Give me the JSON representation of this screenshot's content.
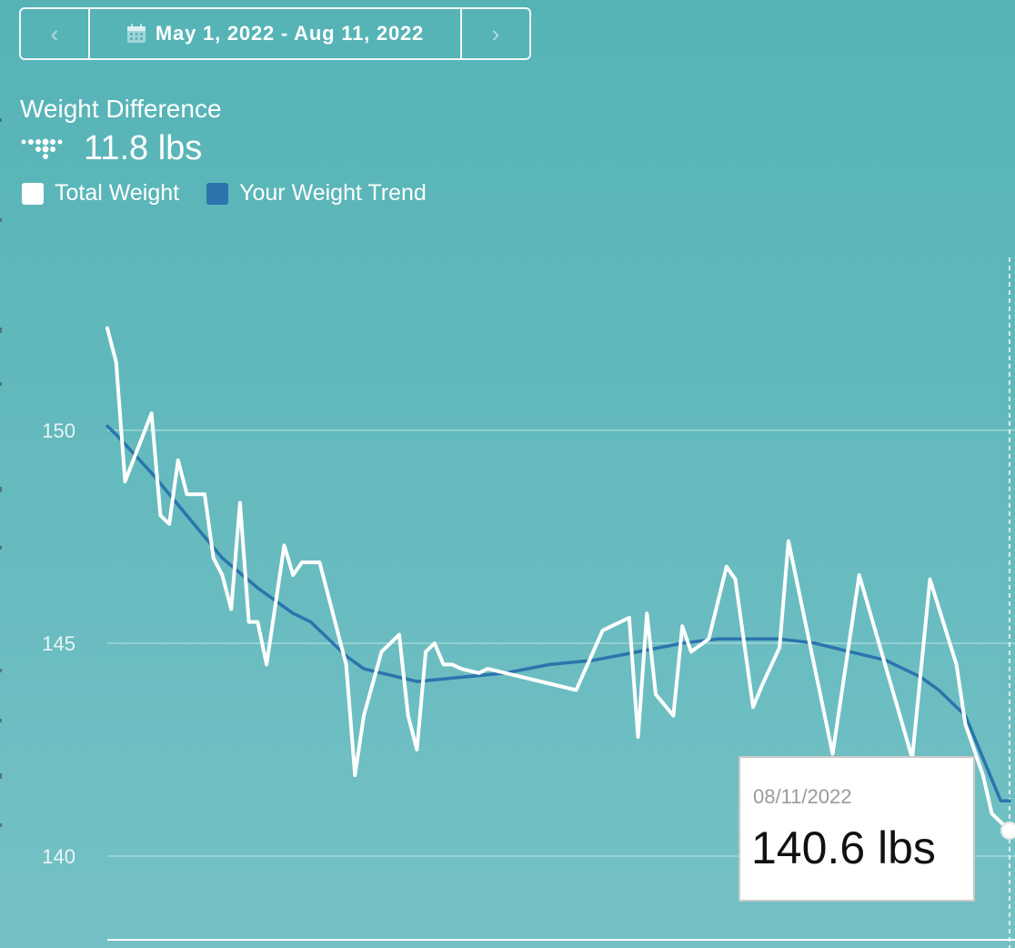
{
  "date_range": {
    "label": "May 1, 2022 - Aug 11, 2022",
    "prev_icon": "chevron-left-icon",
    "next_icon": "chevron-right-icon",
    "calendar_icon": "calendar-icon"
  },
  "metric": {
    "title": "Weight Difference",
    "value": "11.8 lbs",
    "logo_icon": "fitbit-logo-icon"
  },
  "legend": {
    "total_label": "Total Weight",
    "trend_label": "Your Weight Trend"
  },
  "colors": {
    "background_top": "#55b3b6",
    "background_bottom": "#74c1c5",
    "total_weight": "#ffffff",
    "weight_trend": "#2b74ad",
    "gridline": "#a8dde0"
  },
  "tooltip": {
    "date": "08/11/2022",
    "value": "140.6 lbs"
  },
  "chart_data": {
    "type": "line",
    "title": "",
    "xlabel": "",
    "ylabel": "",
    "x_range": [
      "2022-05-01",
      "2022-08-11"
    ],
    "ylim": [
      137.8,
      153.5
    ],
    "yticks": [
      150,
      145,
      140
    ],
    "ytick_labels": [
      "150",
      "145",
      "140"
    ],
    "grid": "horizontal",
    "series": [
      {
        "name": "Total Weight",
        "x": [
          "2022-05-01",
          "2022-05-02",
          "2022-05-03",
          "2022-05-06",
          "2022-05-07",
          "2022-05-08",
          "2022-05-09",
          "2022-05-10",
          "2022-05-12",
          "2022-05-13",
          "2022-05-14",
          "2022-05-15",
          "2022-05-16",
          "2022-05-17",
          "2022-05-18",
          "2022-05-19",
          "2022-05-21",
          "2022-05-22",
          "2022-05-23",
          "2022-05-25",
          "2022-05-28",
          "2022-05-29",
          "2022-05-30",
          "2022-06-01",
          "2022-06-03",
          "2022-06-04",
          "2022-06-05",
          "2022-06-06",
          "2022-06-07",
          "2022-06-08",
          "2022-06-09",
          "2022-06-10",
          "2022-06-12",
          "2022-06-13",
          "2022-06-23",
          "2022-06-26",
          "2022-06-29",
          "2022-06-30",
          "2022-07-01",
          "2022-07-02",
          "2022-07-04",
          "2022-07-05",
          "2022-07-06",
          "2022-07-08",
          "2022-07-10",
          "2022-07-11",
          "2022-07-13",
          "2022-07-14",
          "2022-07-16",
          "2022-07-17",
          "2022-07-22",
          "2022-07-25",
          "2022-07-31",
          "2022-08-02",
          "2022-08-05",
          "2022-08-06",
          "2022-08-08",
          "2022-08-09",
          "2022-08-11"
        ],
        "values": [
          152.4,
          151.6,
          148.8,
          150.4,
          148.0,
          147.8,
          149.3,
          148.5,
          148.5,
          147.0,
          146.6,
          145.8,
          148.3,
          145.5,
          145.5,
          144.5,
          147.3,
          146.6,
          146.9,
          146.9,
          144.5,
          141.9,
          143.3,
          144.8,
          145.2,
          143.3,
          142.5,
          144.8,
          145.0,
          144.5,
          144.5,
          144.4,
          144.3,
          144.4,
          143.9,
          145.3,
          145.6,
          142.8,
          145.7,
          143.8,
          143.3,
          145.4,
          144.8,
          145.1,
          146.8,
          146.5,
          143.5,
          144.0,
          144.9,
          147.4,
          142.4,
          146.6,
          142.3,
          146.5,
          144.5,
          143.1,
          141.9,
          141.0,
          140.6
        ]
      },
      {
        "name": "Your Weight Trend",
        "x": [
          "2022-05-01",
          "2022-05-02",
          "2022-05-06",
          "2022-05-10",
          "2022-05-14",
          "2022-05-18",
          "2022-05-22",
          "2022-05-24",
          "2022-05-26",
          "2022-05-28",
          "2022-05-30",
          "2022-06-01",
          "2022-06-03",
          "2022-06-05",
          "2022-06-10",
          "2022-06-15",
          "2022-06-20",
          "2022-06-25",
          "2022-06-30",
          "2022-07-05",
          "2022-07-09",
          "2022-07-12",
          "2022-07-16",
          "2022-07-20",
          "2022-07-24",
          "2022-07-28",
          "2022-08-01",
          "2022-08-03",
          "2022-08-06",
          "2022-08-10",
          "2022-08-11"
        ],
        "values": [
          150.1,
          149.9,
          149.0,
          148.0,
          147.0,
          146.3,
          145.7,
          145.5,
          145.1,
          144.7,
          144.4,
          144.3,
          144.2,
          144.1,
          144.2,
          144.3,
          144.5,
          144.6,
          144.8,
          145.0,
          145.1,
          145.1,
          145.1,
          145.0,
          144.8,
          144.6,
          144.2,
          143.9,
          143.3,
          141.3,
          141.3
        ]
      }
    ],
    "highlighted_point": {
      "x": "2022-08-11",
      "y": 140.6
    }
  }
}
